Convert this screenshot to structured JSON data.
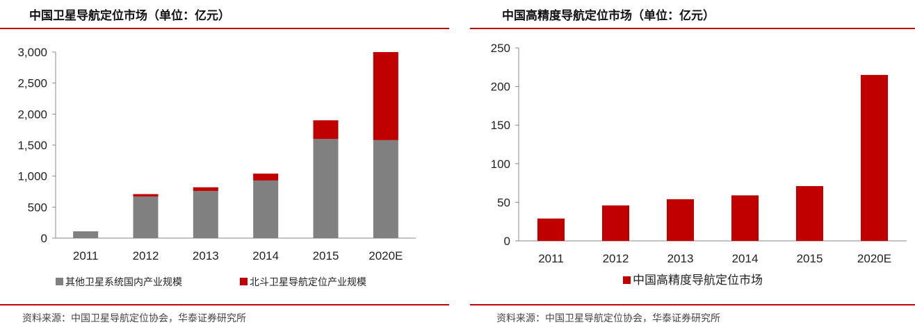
{
  "colors": {
    "gray": "#808080",
    "red": "#c00000",
    "axis": "#888888",
    "text": "#222222"
  },
  "chart_data": [
    {
      "type": "bar",
      "stacked": true,
      "title": "中国卫星导航定位市场（单位：亿元）",
      "categories": [
        "2011",
        "2012",
        "2013",
        "2014",
        "2015",
        "2020E"
      ],
      "series": [
        {
          "name": "其他卫星系统国内产业规模",
          "color": "#808080",
          "values": [
            110,
            670,
            760,
            930,
            1600,
            1580
          ]
        },
        {
          "name": "北斗卫星导航定位产业规模",
          "color": "#c00000",
          "values": [
            0,
            40,
            60,
            110,
            300,
            1420
          ]
        }
      ],
      "ylim": [
        0,
        3000
      ],
      "yticks": [
        0,
        500,
        1000,
        1500,
        2000,
        2500,
        3000
      ],
      "ytick_labels": [
        "0",
        "500",
        "1,000",
        "1,500",
        "2,000",
        "2,500",
        "3,000"
      ],
      "legend_position": "bottom",
      "source": "资料来源：中国卫星导航定位协会，华泰证券研究所"
    },
    {
      "type": "bar",
      "stacked": false,
      "title": "中国高精度导航定位市场（单位：亿元）",
      "categories": [
        "2011",
        "2012",
        "2013",
        "2014",
        "2015",
        "2020E"
      ],
      "series": [
        {
          "name": "中国高精度导航定位市场",
          "color": "#c00000",
          "values": [
            29,
            46,
            54,
            59,
            71,
            215
          ]
        }
      ],
      "ylim": [
        0,
        250
      ],
      "yticks": [
        0,
        50,
        100,
        150,
        200,
        250
      ],
      "ytick_labels": [
        "0",
        "50",
        "100",
        "150",
        "200",
        "250"
      ],
      "legend_position": "bottom",
      "source": "资料来源：中国卫星导航定位协会，华泰证券研究所"
    }
  ]
}
